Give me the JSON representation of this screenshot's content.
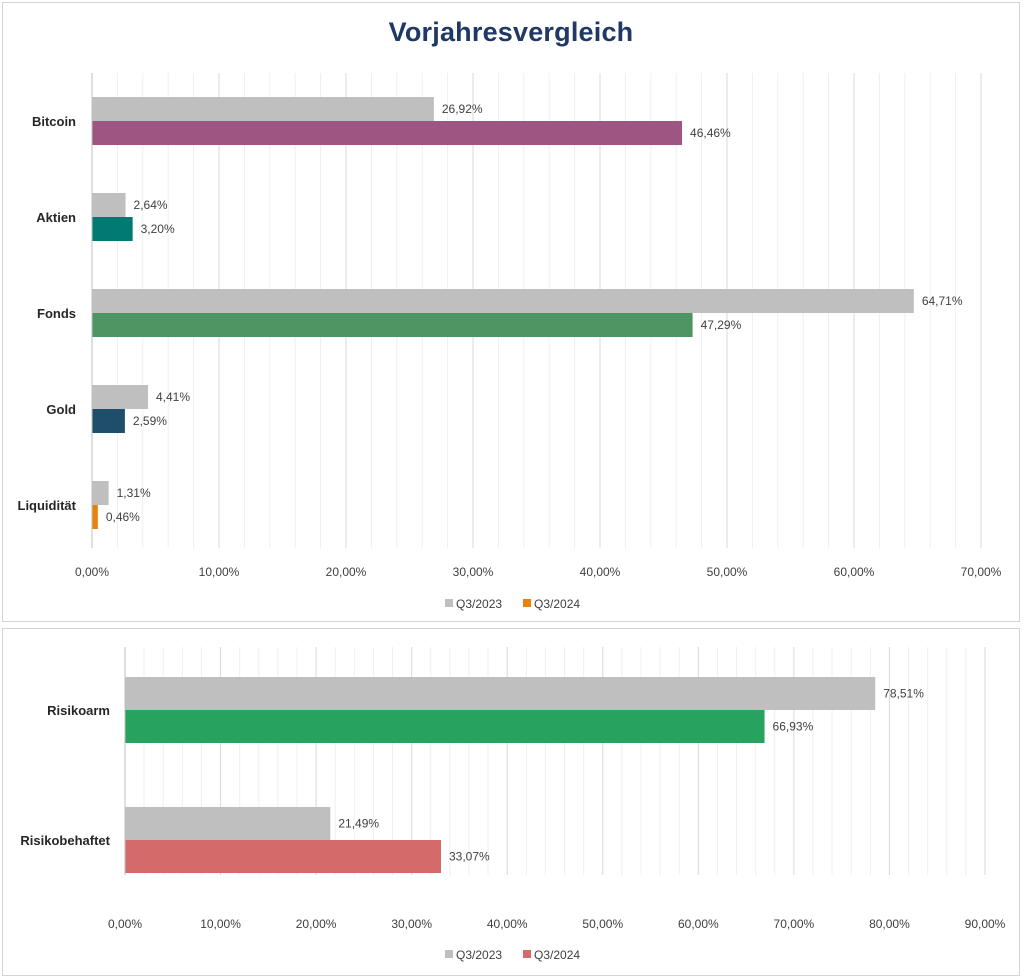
{
  "chart_data": [
    {
      "type": "bar",
      "orientation": "horizontal",
      "title": "Vorjahresvergleich",
      "categories": [
        "Bitcoin",
        "Aktien",
        "Fonds",
        "Gold",
        "Liquidität"
      ],
      "series": [
        {
          "name": "Q3/2023",
          "values": [
            26.92,
            2.64,
            64.71,
            4.41,
            1.31
          ],
          "labels": [
            "26,92%",
            "2,64%",
            "64,71%",
            "4,41%",
            "1,31%"
          ],
          "colors": [
            "#bfbfbf",
            "#bfbfbf",
            "#bfbfbf",
            "#bfbfbf",
            "#bfbfbf"
          ]
        },
        {
          "name": "Q3/2024",
          "values": [
            46.46,
            3.2,
            47.29,
            2.59,
            0.46
          ],
          "labels": [
            "46,46%",
            "3,20%",
            "47,29%",
            "2,59%",
            "0,46%"
          ],
          "colors": [
            "#9e5582",
            "#007a72",
            "#4f9463",
            "#1f4e6b",
            "#e8820c"
          ]
        }
      ],
      "legend_colors": [
        "#bfbfbf",
        "#e8820c"
      ],
      "xlim": [
        0,
        70
      ],
      "ticks": [
        "0,00%",
        "10,00%",
        "20,00%",
        "30,00%",
        "40,00%",
        "50,00%",
        "60,00%",
        "70,00%"
      ],
      "grid": true,
      "legend": "bottom"
    },
    {
      "type": "bar",
      "orientation": "horizontal",
      "categories": [
        "Risikoarm",
        "Risikobehaftet"
      ],
      "series": [
        {
          "name": "Q3/2023",
          "values": [
            78.51,
            21.49
          ],
          "labels": [
            "78,51%",
            "21,49%"
          ],
          "colors": [
            "#bfbfbf",
            "#bfbfbf"
          ]
        },
        {
          "name": "Q3/2024",
          "values": [
            66.93,
            33.07
          ],
          "labels": [
            "66,93%",
            "33,07%"
          ],
          "colors": [
            "#27a35f",
            "#d46a6a"
          ]
        }
      ],
      "legend_colors": [
        "#bfbfbf",
        "#d46a6a"
      ],
      "xlim": [
        0,
        90
      ],
      "ticks": [
        "0,00%",
        "10,00%",
        "20,00%",
        "30,00%",
        "40,00%",
        "50,00%",
        "60,00%",
        "70,00%",
        "80,00%",
        "90,00%"
      ],
      "grid": true,
      "legend": "bottom"
    }
  ]
}
